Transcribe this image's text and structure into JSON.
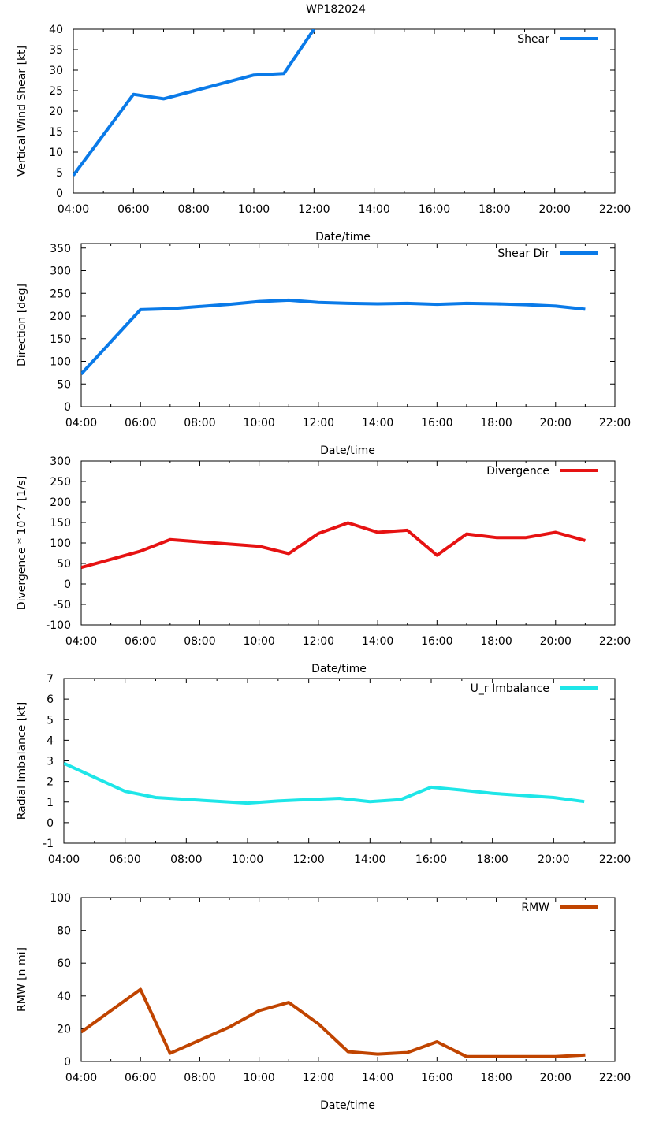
{
  "figure": {
    "title": "WP182024"
  },
  "chart_data": [
    {
      "type": "line",
      "title": "WP182024",
      "xlabel": "",
      "ylabel": "Vertical Wind Shear [kt]",
      "x_ticks": [
        "04:00",
        "06:00",
        "08:00",
        "10:00",
        "12:00",
        "14:00",
        "16:00",
        "18:00",
        "20:00",
        "22:00"
      ],
      "xlim": [
        4,
        22
      ],
      "ylim": [
        0,
        40
      ],
      "y_ticks": [
        0,
        5,
        10,
        15,
        20,
        25,
        30,
        35,
        40
      ],
      "legend_position": "top-right",
      "series": [
        {
          "name": "Shear",
          "color": "#0a7ae8",
          "x": [
            4,
            6,
            7,
            10,
            11,
            12
          ],
          "y": [
            4.3,
            24.1,
            23.0,
            28.8,
            29.2,
            40.0
          ]
        }
      ]
    },
    {
      "type": "line",
      "title": "",
      "xlabel": "Date/time",
      "ylabel": "Direction [deg]",
      "x_ticks": [
        "04:00",
        "06:00",
        "08:00",
        "10:00",
        "12:00",
        "14:00",
        "16:00",
        "18:00",
        "20:00",
        "22:00"
      ],
      "xlim": [
        4,
        22
      ],
      "ylim": [
        0,
        360
      ],
      "y_ticks": [
        0,
        50,
        100,
        150,
        200,
        250,
        300,
        350
      ],
      "legend_position": "top-right",
      "series": [
        {
          "name": "Shear Dir",
          "color": "#0a7ae8",
          "x": [
            4,
            6,
            7,
            8,
            9,
            10,
            11,
            12,
            13,
            14,
            15,
            16,
            17,
            18,
            19,
            20,
            21
          ],
          "y": [
            72,
            214,
            216,
            221,
            226,
            232,
            235,
            230,
            228,
            227,
            228,
            226,
            228,
            227,
            225,
            222,
            215
          ]
        }
      ]
    },
    {
      "type": "line",
      "title": "",
      "xlabel": "Date/time",
      "ylabel": "Divergence * 10^7 [1/s]",
      "x_ticks": [
        "04:00",
        "06:00",
        "08:00",
        "10:00",
        "12:00",
        "14:00",
        "16:00",
        "18:00",
        "20:00",
        "22:00"
      ],
      "xlim": [
        4,
        22
      ],
      "ylim": [
        -100,
        300
      ],
      "y_ticks": [
        -100,
        -50,
        0,
        50,
        100,
        150,
        200,
        250,
        300
      ],
      "legend_position": "top-right",
      "series": [
        {
          "name": "Divergence",
          "color": "#e61212",
          "x": [
            4,
            6,
            7,
            10,
            11,
            12,
            13,
            14,
            15,
            16,
            17,
            18,
            19,
            20,
            21
          ],
          "y": [
            40,
            80,
            108,
            92,
            74,
            123,
            149,
            126,
            131,
            70,
            122,
            113,
            113,
            126,
            106
          ]
        }
      ]
    },
    {
      "type": "line",
      "title": "",
      "xlabel": "Date/time",
      "ylabel": "Radial Imbalance [kt]",
      "x_ticks": [
        "04:00",
        "06:00",
        "08:00",
        "10:00",
        "12:00",
        "14:00",
        "16:00",
        "18:00",
        "20:00",
        "22:00"
      ],
      "xlim": [
        4,
        22
      ],
      "ylim": [
        -1,
        7
      ],
      "y_ticks": [
        -1,
        0,
        1,
        2,
        3,
        4,
        5,
        6,
        7
      ],
      "legend_position": "top-right",
      "series": [
        {
          "name": "U_r Imbalance",
          "color": "#1ee6e8",
          "x": [
            4,
            6,
            7,
            10,
            11,
            12,
            13,
            14,
            15,
            16,
            17,
            18,
            19,
            20,
            21
          ],
          "y": [
            2.88,
            1.52,
            1.22,
            0.95,
            1.05,
            1.12,
            1.18,
            1.02,
            1.12,
            1.72,
            1.58,
            1.42,
            1.32,
            1.22,
            1.02
          ]
        }
      ]
    },
    {
      "type": "line",
      "title": "",
      "xlabel": "Date/time",
      "ylabel": "RMW [n mi]",
      "x_ticks": [
        "04:00",
        "06:00",
        "08:00",
        "10:00",
        "12:00",
        "14:00",
        "16:00",
        "18:00",
        "20:00",
        "22:00"
      ],
      "xlim": [
        4,
        22
      ],
      "ylim": [
        0,
        100
      ],
      "y_ticks": [
        0,
        20,
        40,
        60,
        80,
        100
      ],
      "legend_position": "top-right",
      "series": [
        {
          "name": "RMW",
          "color": "#c04400",
          "x": [
            4,
            6,
            7,
            9,
            10,
            11,
            12,
            13,
            14,
            15,
            16,
            17,
            18,
            19,
            20,
            21
          ],
          "y": [
            18,
            44,
            5,
            21,
            31,
            36,
            23,
            6,
            4.5,
            5.5,
            12,
            3,
            3,
            3,
            3,
            4
          ]
        }
      ]
    }
  ]
}
